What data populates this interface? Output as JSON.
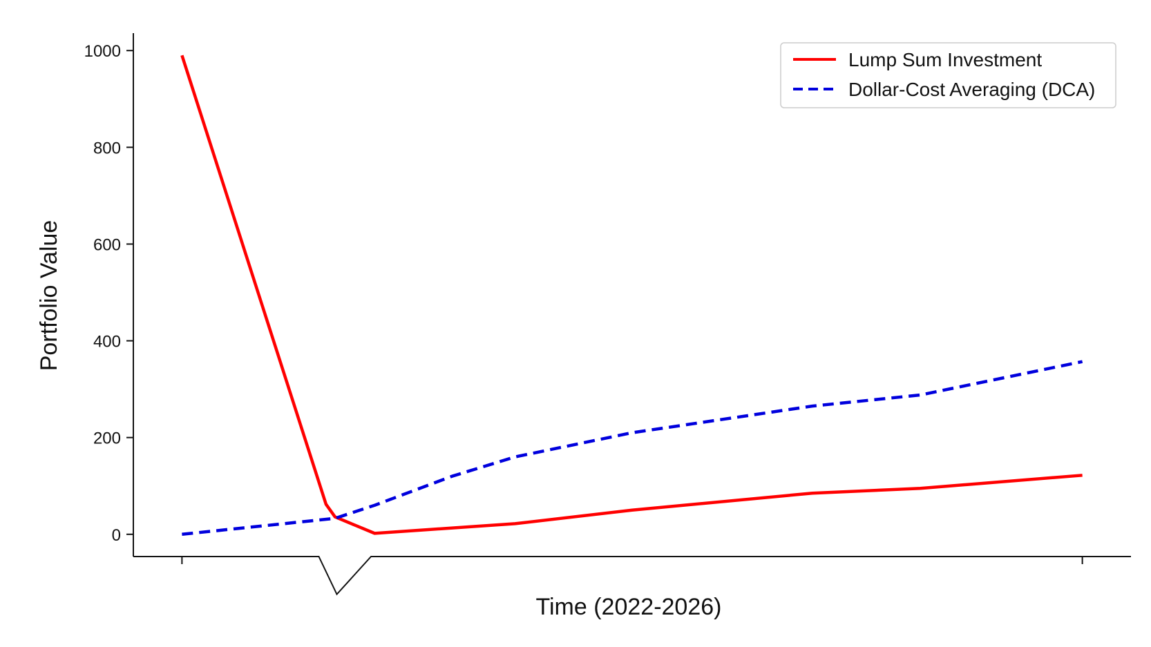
{
  "chart_data": {
    "type": "line",
    "title": "",
    "xlabel": "Time (2022-2026)",
    "ylabel": "Portfolio Value",
    "ylim": [
      -46,
      1036
    ],
    "xlim": [
      -0.27,
      5.27
    ],
    "yticks": [
      0,
      200,
      400,
      600,
      800,
      1000
    ],
    "xticks": [
      0,
      5
    ],
    "grid": false,
    "legend": "top-right",
    "series": [
      {
        "name": "Lump Sum Investment",
        "color": "#ff0000",
        "dash": "solid",
        "x": [
          0,
          0.8,
          0.85,
          1.07,
          1.85,
          2.5,
          3.5,
          4.1,
          5
        ],
        "y": [
          990,
          62,
          36,
          2,
          22,
          50,
          85,
          95,
          122
        ]
      },
      {
        "name": "Dollar-Cost Averaging (DCA)",
        "color": "#0000dd",
        "dash": "dashed",
        "x": [
          0,
          0.85,
          1.07,
          1.5,
          1.85,
          2.5,
          3.5,
          4.1,
          5
        ],
        "y": [
          0,
          33,
          60,
          120,
          160,
          210,
          265,
          288,
          357
        ]
      }
    ],
    "axis_glitch": {
      "x": [
        0.76,
        0.86,
        1.05
      ],
      "y": [
        -46,
        -124,
        -46
      ]
    }
  }
}
